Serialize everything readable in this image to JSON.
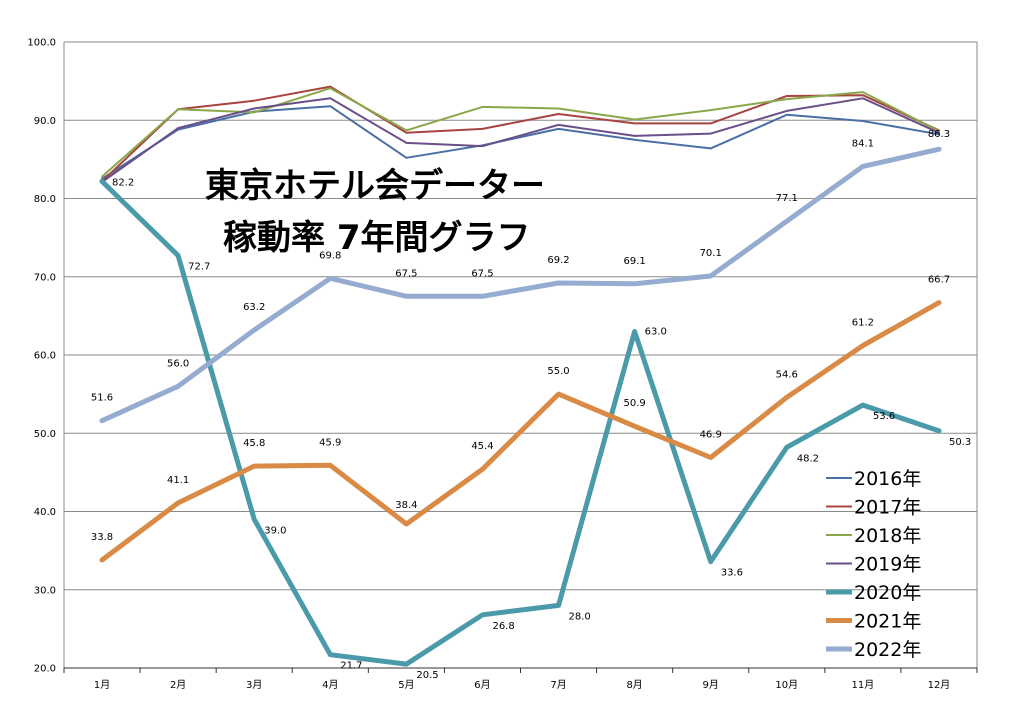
{
  "chart_data": {
    "type": "line",
    "title_lines": [
      "東京ホテル会データー",
      "稼動率 7年間グラフ"
    ],
    "categories": [
      "1月",
      "2月",
      "3月",
      "4月",
      "5月",
      "6月",
      "7月",
      "8月",
      "9月",
      "10月",
      "11月",
      "12月"
    ],
    "ylim": [
      20,
      100
    ],
    "yticks": [
      "20.0",
      "30.0",
      "40.0",
      "50.0",
      "60.0",
      "70.0",
      "80.0",
      "90.0",
      "100.0"
    ],
    "grid": true,
    "legend_position": "bottom-right",
    "series": [
      {
        "name": "2016年",
        "color": "#4a6fa5",
        "width": "thin",
        "labeled": false,
        "values": [
          82.5,
          88.8,
          91.1,
          91.8,
          85.2,
          86.8,
          88.9,
          87.5,
          86.4,
          90.7,
          89.9,
          88.2
        ]
      },
      {
        "name": "2017年",
        "color": "#a84440",
        "width": "thin",
        "labeled": false,
        "values": [
          82.2,
          91.4,
          92.5,
          94.3,
          88.4,
          88.9,
          90.8,
          89.6,
          89.6,
          93.1,
          93.2,
          88.7
        ]
      },
      {
        "name": "2018年",
        "color": "#8aa84a",
        "width": "thin",
        "labeled": false,
        "values": [
          82.8,
          91.4,
          91.0,
          94.1,
          88.7,
          91.7,
          91.5,
          90.1,
          91.3,
          92.7,
          93.6,
          88.6
        ]
      },
      {
        "name": "2019年",
        "color": "#6a4f8a",
        "width": "thin",
        "labeled": false,
        "values": [
          82.1,
          89.0,
          91.5,
          92.8,
          87.1,
          86.7,
          89.4,
          88.0,
          88.3,
          91.2,
          92.8,
          88.4
        ]
      },
      {
        "name": "2020年",
        "color": "#4a9aaa",
        "width": "thick",
        "labeled": true,
        "values": [
          82.2,
          72.7,
          39.0,
          21.7,
          20.5,
          26.8,
          28.0,
          63.0,
          33.6,
          48.2,
          53.6,
          50.3
        ]
      },
      {
        "name": "2021年",
        "color": "#d98a45",
        "width": "thick",
        "labeled": true,
        "values": [
          33.8,
          41.1,
          45.8,
          45.9,
          38.4,
          45.4,
          55.0,
          50.9,
          46.9,
          54.6,
          61.2,
          66.7
        ]
      },
      {
        "name": "2022年",
        "color": "#95abd0",
        "width": "thick",
        "labeled": true,
        "values": [
          51.6,
          56.0,
          63.2,
          69.8,
          67.5,
          67.5,
          69.2,
          69.1,
          70.1,
          77.1,
          84.1,
          86.3
        ]
      }
    ]
  }
}
